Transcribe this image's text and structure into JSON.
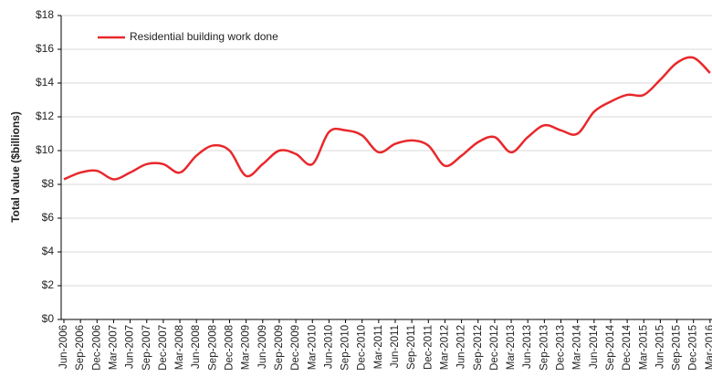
{
  "chart_data": {
    "type": "line",
    "y_label": "Total value ($billions)",
    "categories": [
      "Jun-2006",
      "Sep-2006",
      "Dec-2006",
      "Mar-2007",
      "Jun-2007",
      "Sep-2007",
      "Dec-2007",
      "Mar-2008",
      "Jun-2008",
      "Sep-2008",
      "Dec-2008",
      "Mar-2009",
      "Jun-2009",
      "Sep-2009",
      "Dec-2009",
      "Mar-2010",
      "Jun-2010",
      "Sep-2010",
      "Dec-2010",
      "Mar-2011",
      "Jun-2011",
      "Sep-2011",
      "Dec-2011",
      "Mar-2012",
      "Jun-2012",
      "Sep-2012",
      "Dec-2012",
      "Mar-2013",
      "Jun-2013",
      "Sep-2013",
      "Dec-2013",
      "Mar-2014",
      "Jun-2014",
      "Sep-2014",
      "Dec-2014",
      "Mar-2015",
      "Jun-2015",
      "Sep-2015",
      "Dec-2015",
      "Mar-2016"
    ],
    "series": [
      {
        "name": "Residential building work done",
        "color": "#e8282b",
        "values": [
          8.3,
          8.7,
          8.8,
          8.3,
          8.7,
          9.2,
          9.2,
          8.7,
          9.7,
          10.3,
          10.0,
          8.5,
          9.2,
          10.0,
          9.8,
          9.2,
          11.1,
          11.2,
          10.9,
          9.9,
          10.4,
          10.6,
          10.3,
          9.1,
          9.7,
          10.5,
          10.8,
          9.9,
          10.8,
          11.5,
          11.2,
          11.0,
          12.3,
          12.9,
          13.3,
          13.3,
          14.2,
          15.2,
          15.5,
          14.6
        ]
      }
    ],
    "ylim": [
      0,
      18
    ],
    "yticks": [
      {
        "value": 0,
        "label": "$0"
      },
      {
        "value": 2,
        "label": "$2"
      },
      {
        "value": 4,
        "label": "$4"
      },
      {
        "value": 6,
        "label": "$6"
      },
      {
        "value": 8,
        "label": "$8"
      },
      {
        "value": 10,
        "label": "$10"
      },
      {
        "value": 12,
        "label": "$12"
      },
      {
        "value": 14,
        "label": "$14"
      },
      {
        "value": 16,
        "label": "$16"
      },
      {
        "value": 18,
        "label": "$18"
      }
    ],
    "grid": true
  }
}
